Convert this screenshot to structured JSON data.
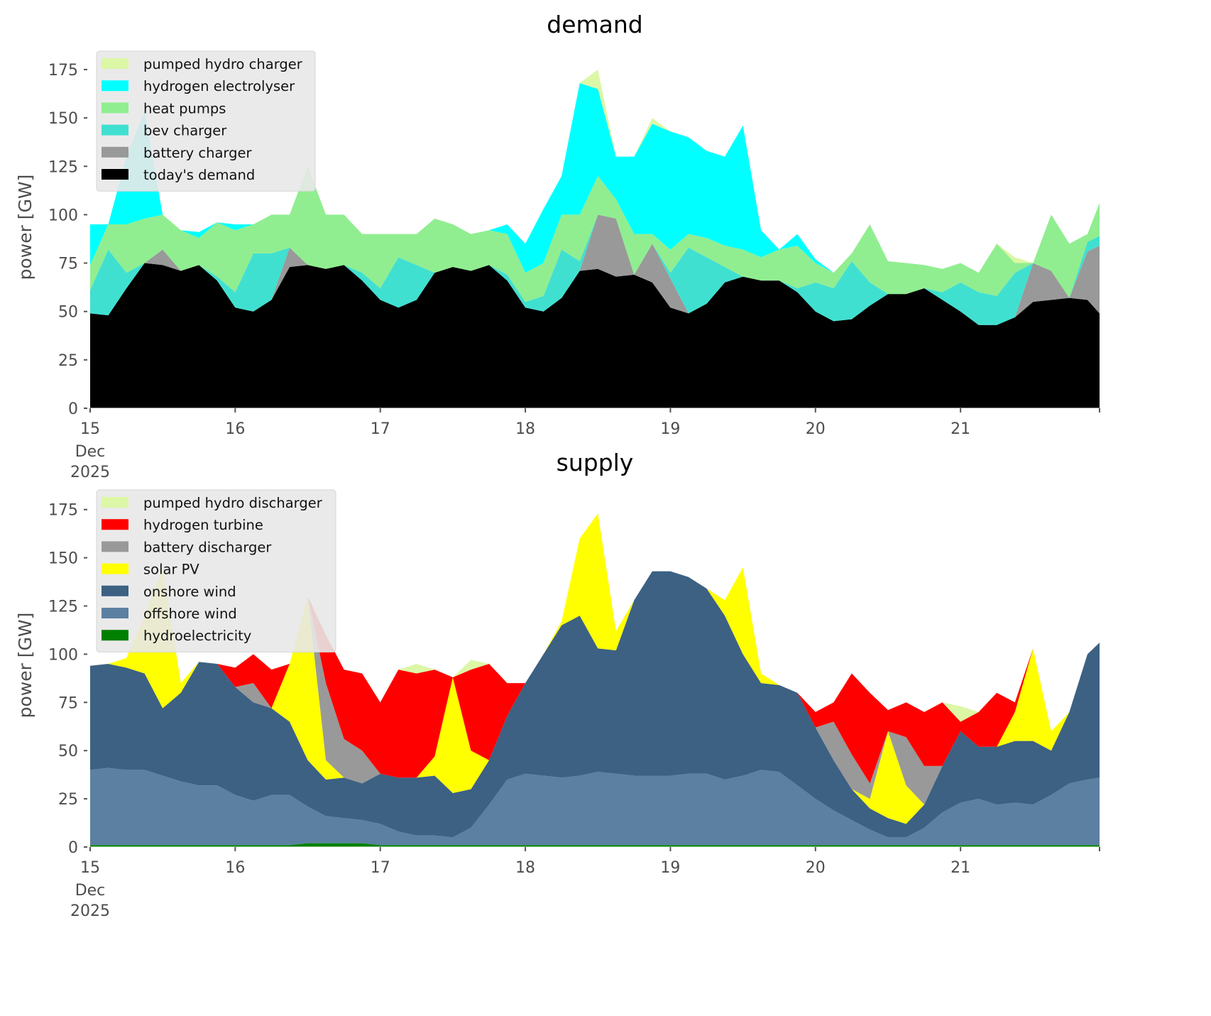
{
  "chart_data": [
    {
      "type": "area",
      "title": "demand",
      "ylabel": "power [GW]",
      "xlabel": "",
      "ylim": [
        0,
        185
      ],
      "xlim_hours": [
        0,
        167
      ],
      "yticks": [
        0,
        25,
        50,
        75,
        100,
        125,
        150,
        175
      ],
      "xticks": [
        {
          "hour": 0,
          "label": "15",
          "sub": [
            "Dec",
            "2025"
          ]
        },
        {
          "hour": 24,
          "label": "16"
        },
        {
          "hour": 48,
          "label": "17"
        },
        {
          "hour": 72,
          "label": "18"
        },
        {
          "hour": 96,
          "label": "19"
        },
        {
          "hour": 120,
          "label": "20"
        },
        {
          "hour": 144,
          "label": "21"
        }
      ],
      "x_hours_step": 3,
      "legend_position": "top-left",
      "legend": [
        "pumped hydro charger",
        "hydrogen electrolyser",
        "heat pumps",
        "bev charger",
        "battery charger",
        "today's demand"
      ],
      "series": [
        {
          "name": "today's demand",
          "color": "#000000",
          "values": [
            49,
            48,
            62,
            75,
            74,
            71,
            74,
            66,
            52,
            50,
            56,
            73,
            74,
            72,
            74,
            66,
            56,
            52,
            56,
            70,
            73,
            71,
            74,
            66,
            52,
            50,
            57,
            71,
            72,
            68,
            69,
            65,
            52,
            49,
            54,
            65,
            68,
            66,
            66,
            60,
            50,
            45,
            46,
            53,
            59,
            59,
            62,
            56,
            50,
            43,
            43,
            47,
            55,
            56,
            57,
            56,
            49
          ]
        },
        {
          "name": "battery charger",
          "color": "#999999",
          "values": [
            0,
            0,
            0,
            0,
            8,
            0,
            0,
            0,
            0,
            0,
            0,
            10,
            0,
            0,
            0,
            0,
            0,
            0,
            0,
            0,
            0,
            0,
            0,
            0,
            0,
            0,
            0,
            0,
            28,
            30,
            0,
            20,
            15,
            0,
            0,
            0,
            0,
            0,
            0,
            0,
            0,
            0,
            0,
            0,
            0,
            0,
            0,
            0,
            0,
            0,
            0,
            0,
            20,
            15,
            0,
            25,
            35
          ]
        },
        {
          "name": "bev charger",
          "color": "#40e0d0",
          "values": [
            12,
            34,
            8,
            0,
            0,
            0,
            0,
            2,
            8,
            30,
            24,
            0,
            0,
            0,
            0,
            4,
            6,
            26,
            18,
            0,
            0,
            0,
            0,
            3,
            3,
            8,
            25,
            5,
            0,
            0,
            0,
            0,
            3,
            34,
            24,
            8,
            0,
            0,
            0,
            2,
            15,
            17,
            30,
            12,
            0,
            0,
            0,
            4,
            15,
            17,
            15,
            23,
            0,
            0,
            0,
            5,
            5
          ]
        },
        {
          "name": "heat pumps",
          "color": "#90ee90",
          "values": [
            13,
            13,
            25,
            23,
            18,
            21,
            14,
            28,
            32,
            15,
            20,
            17,
            51,
            28,
            26,
            20,
            28,
            12,
            16,
            28,
            22,
            19,
            18,
            21,
            15,
            17,
            18,
            24,
            20,
            10,
            21,
            5,
            12,
            7,
            10,
            11,
            14,
            12,
            16,
            22,
            10,
            8,
            4,
            30,
            17,
            16,
            12,
            12,
            10,
            10,
            27,
            5,
            0,
            29,
            28,
            4,
            17
          ]
        },
        {
          "name": "hydrogen electrolyser",
          "color": "#00ffff",
          "values": [
            21,
            0,
            35,
            55,
            0,
            0,
            3,
            0,
            3,
            0,
            0,
            0,
            0,
            0,
            0,
            0,
            0,
            0,
            0,
            0,
            0,
            0,
            0,
            5,
            15,
            28,
            20,
            68,
            45,
            22,
            40,
            57,
            61,
            50,
            45,
            46,
            64,
            14,
            0,
            6,
            2,
            0,
            0,
            0,
            0,
            0,
            0,
            0,
            0,
            0,
            0,
            0,
            0,
            0,
            0,
            0,
            0
          ]
        },
        {
          "name": "pumped hydro charger",
          "color": "#dcf7a6",
          "values": [
            0,
            0,
            0,
            0,
            0,
            0,
            0,
            0,
            0,
            0,
            0,
            0,
            0,
            0,
            0,
            0,
            0,
            0,
            0,
            0,
            0,
            0,
            0,
            0,
            0,
            0,
            0,
            0,
            10,
            0,
            0,
            3,
            0,
            0,
            0,
            0,
            0,
            0,
            0,
            0,
            0,
            0,
            0,
            0,
            0,
            0,
            0,
            0,
            0,
            0,
            0,
            3,
            0,
            0,
            0,
            0,
            0
          ]
        }
      ]
    },
    {
      "type": "area",
      "title": "supply",
      "ylabel": "power [GW]",
      "xlabel": "",
      "ylim": [
        0,
        185
      ],
      "xlim_hours": [
        0,
        167
      ],
      "yticks": [
        0,
        25,
        50,
        75,
        100,
        125,
        150,
        175
      ],
      "xticks": [
        {
          "hour": 0,
          "label": "15",
          "sub": [
            "Dec",
            "2025"
          ]
        },
        {
          "hour": 24,
          "label": "16"
        },
        {
          "hour": 48,
          "label": "17"
        },
        {
          "hour": 72,
          "label": "18"
        },
        {
          "hour": 96,
          "label": "19"
        },
        {
          "hour": 120,
          "label": "20"
        },
        {
          "hour": 144,
          "label": "21"
        }
      ],
      "x_hours_step": 3,
      "legend_position": "top-left",
      "legend": [
        "pumped hydro discharger",
        "hydrogen turbine",
        "battery discharger",
        "solar PV",
        "onshore wind",
        "offshore wind",
        "hydroelectricity"
      ],
      "series": [
        {
          "name": "hydroelectricity",
          "color": "#008000",
          "values": [
            1,
            1,
            1,
            1,
            1,
            1,
            1,
            1,
            1,
            1,
            1,
            1,
            2,
            2,
            2,
            2,
            1,
            1,
            1,
            1,
            1,
            1,
            1,
            1,
            1,
            1,
            1,
            1,
            1,
            1,
            1,
            1,
            1,
            1,
            1,
            1,
            1,
            1,
            1,
            1,
            1,
            1,
            1,
            1,
            1,
            1,
            1,
            1,
            1,
            1,
            1,
            1,
            1,
            1,
            1,
            1,
            1
          ]
        },
        {
          "name": "offshore wind",
          "color": "#5b80a1",
          "values": [
            39,
            40,
            39,
            39,
            36,
            33,
            31,
            31,
            26,
            23,
            26,
            26,
            19,
            14,
            13,
            12,
            11,
            7,
            5,
            5,
            4,
            9,
            21,
            34,
            37,
            36,
            35,
            36,
            38,
            37,
            36,
            36,
            36,
            37,
            37,
            34,
            36,
            39,
            38,
            31,
            24,
            18,
            13,
            8,
            4,
            4,
            9,
            17,
            22,
            24,
            21,
            22,
            21,
            26,
            32,
            34,
            35
          ]
        },
        {
          "name": "onshore wind",
          "color": "#3c6183",
          "values": [
            54,
            54,
            53,
            50,
            35,
            46,
            64,
            63,
            56,
            51,
            45,
            38,
            24,
            19,
            21,
            19,
            26,
            28,
            30,
            31,
            23,
            20,
            23,
            33,
            47,
            63,
            79,
            83,
            64,
            64,
            91,
            106,
            106,
            102,
            96,
            85,
            63,
            45,
            45,
            48,
            37,
            26,
            16,
            11,
            10,
            7,
            12,
            24,
            37,
            27,
            30,
            32,
            33,
            23,
            37,
            65,
            70
          ]
        },
        {
          "name": "solar PV",
          "color": "#ffff00",
          "values": [
            0,
            0,
            5,
            30,
            73,
            5,
            0,
            0,
            0,
            0,
            0,
            30,
            85,
            10,
            0,
            0,
            0,
            0,
            0,
            10,
            60,
            20,
            0,
            0,
            0,
            0,
            2,
            40,
            70,
            10,
            0,
            0,
            0,
            0,
            0,
            8,
            45,
            5,
            0,
            0,
            0,
            0,
            0,
            5,
            45,
            20,
            0,
            0,
            0,
            0,
            0,
            15,
            48,
            10,
            0,
            0,
            0
          ]
        },
        {
          "name": "battery discharger",
          "color": "#999999",
          "values": [
            0,
            0,
            0,
            0,
            0,
            0,
            0,
            0,
            0,
            10,
            0,
            0,
            0,
            40,
            20,
            17,
            0,
            0,
            0,
            0,
            0,
            0,
            0,
            0,
            0,
            0,
            0,
            0,
            0,
            0,
            0,
            0,
            0,
            0,
            0,
            0,
            0,
            0,
            0,
            0,
            0,
            20,
            18,
            8,
            0,
            25,
            20,
            0,
            0,
            0,
            0,
            0,
            0,
            0,
            0,
            0,
            0
          ]
        },
        {
          "name": "hydrogen turbine",
          "color": "#ff0000",
          "values": [
            0,
            0,
            0,
            0,
            0,
            0,
            0,
            0,
            10,
            15,
            20,
            0,
            0,
            25,
            36,
            40,
            37,
            56,
            54,
            45,
            0,
            42,
            50,
            17,
            0,
            0,
            0,
            0,
            0,
            0,
            0,
            0,
            0,
            0,
            0,
            0,
            0,
            0,
            0,
            0,
            8,
            10,
            42,
            47,
            11,
            18,
            28,
            33,
            5,
            18,
            28,
            5,
            0,
            0,
            0,
            0,
            0
          ]
        },
        {
          "name": "pumped hydro discharger",
          "color": "#dcf7a6",
          "values": [
            0,
            0,
            0,
            0,
            0,
            0,
            0,
            0,
            0,
            0,
            0,
            0,
            0,
            0,
            0,
            0,
            0,
            0,
            5,
            0,
            0,
            5,
            0,
            0,
            0,
            0,
            0,
            0,
            0,
            0,
            0,
            0,
            0,
            0,
            0,
            0,
            0,
            0,
            0,
            0,
            0,
            0,
            0,
            0,
            0,
            0,
            0,
            0,
            8,
            0,
            0,
            0,
            0,
            0,
            0,
            0,
            0
          ]
        }
      ]
    }
  ]
}
